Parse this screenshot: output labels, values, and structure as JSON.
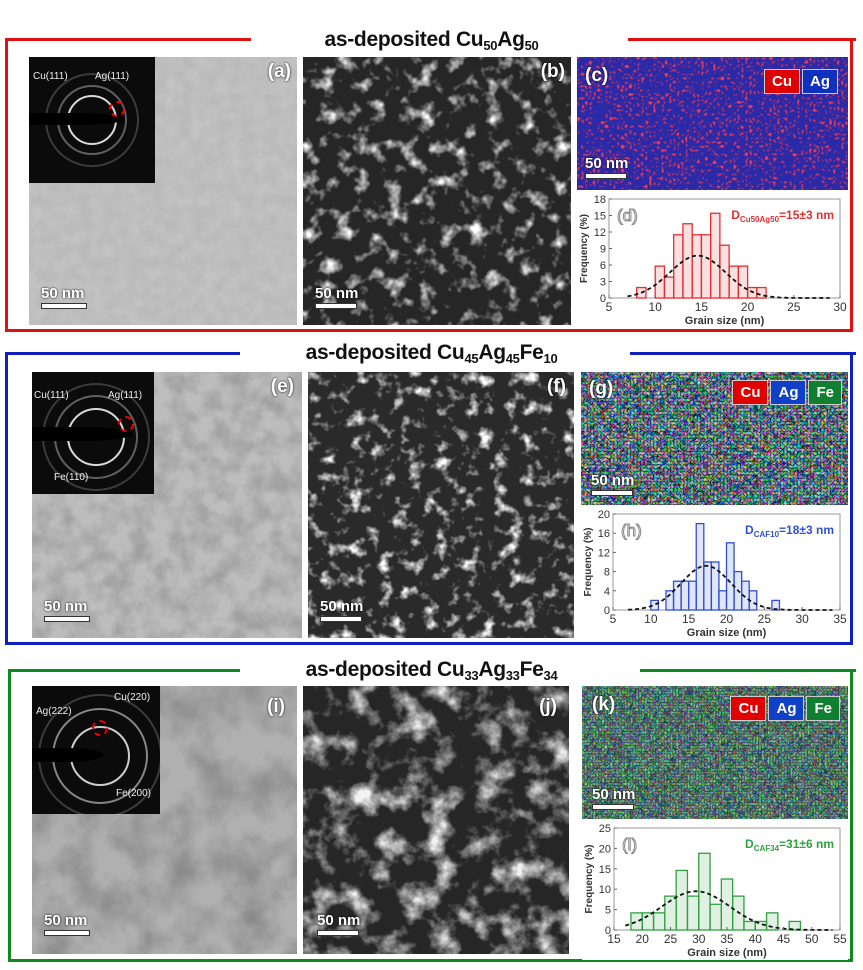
{
  "figure": {
    "rows": [
      {
        "id": "row1",
        "title_main": "as-deposited Cu",
        "title_parts": [
          {
            "t": "as-deposited Cu"
          },
          {
            "s": "50"
          },
          {
            "t": "Ag"
          },
          {
            "s": "50"
          }
        ],
        "color": "#e01010",
        "panels": {
          "bf_label": "(a)",
          "df_label": "(b)",
          "map_label": "(c)",
          "hist_label": "(d)",
          "scale": "50 nm",
          "saed_labels": [
            "Cu(111)",
            "Ag(111)"
          ],
          "legend": [
            {
              "el": "Cu",
              "color": "#e00000"
            },
            {
              "el": "Ag",
              "color": "#1030c0"
            }
          ]
        }
      },
      {
        "id": "row2",
        "title_parts": [
          {
            "t": "as-deposited Cu"
          },
          {
            "s": "45"
          },
          {
            "t": "Ag"
          },
          {
            "s": "45"
          },
          {
            "t": "Fe"
          },
          {
            "s": "10"
          }
        ],
        "color": "#1020c0",
        "panels": {
          "bf_label": "(e)",
          "df_label": "(f)",
          "map_label": "(g)",
          "hist_label": "(h)",
          "scale": "50 nm",
          "saed_labels": [
            "Cu(111)",
            "Ag(111)",
            "Fe(110)"
          ],
          "legend": [
            {
              "el": "Cu",
              "color": "#e00000"
            },
            {
              "el": "Ag",
              "color": "#1040c8"
            },
            {
              "el": "Fe",
              "color": "#108030"
            }
          ]
        }
      },
      {
        "id": "row3",
        "title_parts": [
          {
            "t": "as-deposited Cu"
          },
          {
            "s": "33"
          },
          {
            "t": "Ag"
          },
          {
            "s": "33"
          },
          {
            "t": "Fe"
          },
          {
            "s": "34"
          }
        ],
        "color": "#108a20",
        "panels": {
          "bf_label": "(i)",
          "df_label": "(j)",
          "map_label": "(k)",
          "hist_label": "(l)",
          "scale": "50 nm",
          "saed_labels": [
            "Ag(222)",
            "Cu(220)",
            "Fe(200)"
          ],
          "legend": [
            {
              "el": "Cu",
              "color": "#e00000"
            },
            {
              "el": "Ag",
              "color": "#1040c8"
            },
            {
              "el": "Fe",
              "color": "#108030"
            }
          ]
        }
      }
    ]
  },
  "chart_data": [
    {
      "type": "bar",
      "panel": "(d)",
      "title": "",
      "annotation": "D_Cu50Ag50=15±3 nm",
      "annotation_main": "D",
      "annotation_sub": "Cu50Ag50",
      "annotation_rest": "=15±3 nm",
      "xlabel": "Grain size (nm)",
      "ylabel": "Frequency (%)",
      "xlim": [
        5,
        30
      ],
      "ylim": [
        0,
        18
      ],
      "xticks": [
        5,
        10,
        15,
        20,
        25,
        30
      ],
      "yticks": [
        0,
        3,
        6,
        9,
        12,
        15,
        18
      ],
      "bin_width": 1,
      "bin_starts": [
        8,
        9,
        10,
        11,
        12,
        13,
        14,
        15,
        16,
        17,
        18,
        19,
        20,
        21
      ],
      "values": [
        1.9,
        0,
        5.8,
        3.8,
        11.5,
        13.5,
        11.5,
        11.5,
        15.4,
        9.6,
        5.8,
        5.8,
        1.9,
        1.9
      ],
      "fit": {
        "type": "gaussian-dashed",
        "mean": 14.6,
        "peak": 7.7,
        "sigma": 3.0
      },
      "color": "#e03030"
    },
    {
      "type": "bar",
      "panel": "(h)",
      "annotation": "D_CAF10=18±3 nm",
      "annotation_main": "D",
      "annotation_sub": "CAF10",
      "annotation_rest": "=18±3 nm",
      "xlabel": "Grain size (nm)",
      "ylabel": "Frequency (%)",
      "xlim": [
        5,
        35
      ],
      "ylim": [
        0,
        20
      ],
      "xticks": [
        5,
        10,
        15,
        20,
        25,
        30,
        35
      ],
      "yticks": [
        0,
        4,
        8,
        12,
        16,
        20
      ],
      "bin_width": 1,
      "bin_starts": [
        10,
        11,
        12,
        13,
        14,
        15,
        16,
        17,
        18,
        19,
        20,
        21,
        22,
        23,
        24,
        25,
        26
      ],
      "values": [
        2,
        0,
        4,
        6,
        6,
        6,
        18,
        10,
        10,
        4,
        14,
        8,
        6,
        4,
        0,
        0,
        2
      ],
      "fit": {
        "type": "gaussian-dashed",
        "mean": 17.3,
        "peak": 9.2,
        "sigma": 3.3
      },
      "color": "#3050d0"
    },
    {
      "type": "bar",
      "panel": "(l)",
      "annotation": "D_CAF34=31±6 nm",
      "annotation_main": "D",
      "annotation_sub": "CAF34",
      "annotation_rest": "=31±6 nm",
      "xlabel": "Grain size (nm)",
      "ylabel": "Frequency (%)",
      "xlim": [
        15,
        55
      ],
      "ylim": [
        0,
        25
      ],
      "xticks": [
        15,
        20,
        25,
        30,
        35,
        40,
        45,
        50,
        55
      ],
      "yticks": [
        0,
        5,
        10,
        15,
        20,
        25
      ],
      "bin_width": 2,
      "bin_starts": [
        18,
        20,
        22,
        24,
        26,
        28,
        30,
        32,
        34,
        36,
        38,
        40,
        42,
        44,
        46
      ],
      "values": [
        4.2,
        4.2,
        4.2,
        8.3,
        14.6,
        8.3,
        18.8,
        6.3,
        12.5,
        8.3,
        2.1,
        2.1,
        4.2,
        0,
        2.1
      ],
      "fit": {
        "type": "gaussian-dashed",
        "mean": 29.5,
        "peak": 9.5,
        "sigma": 6.0
      },
      "color": "#30a040"
    }
  ]
}
